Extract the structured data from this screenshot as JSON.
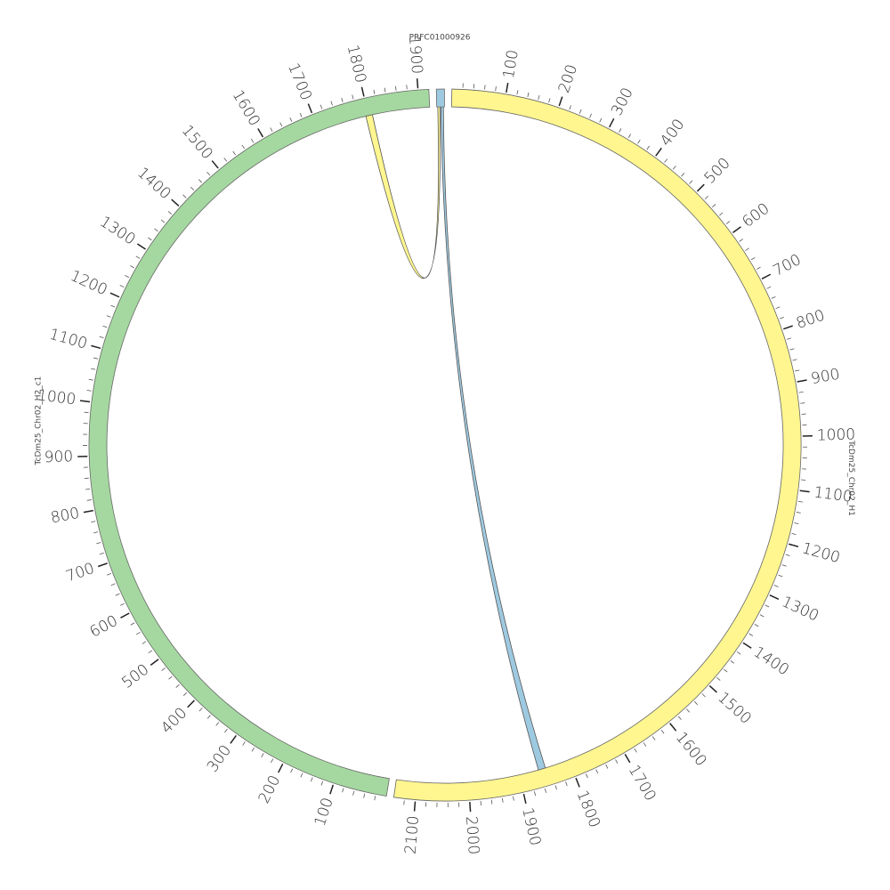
{
  "chart_data": {
    "type": "circos",
    "minor_tick_step": 20,
    "segments": [
      {
        "name": "PRFC01000926",
        "color": "#9ecae1",
        "length": 15,
        "ticks": []
      },
      {
        "name": "TcDm25_Chr02_H1",
        "color": "#fff68f",
        "length": 2140,
        "ticks": [
          100,
          200,
          300,
          400,
          500,
          600,
          700,
          800,
          900,
          1000,
          1100,
          1200,
          1300,
          1400,
          1500,
          1600,
          1700,
          1800,
          1900,
          2000,
          2100
        ]
      },
      {
        "name": "TcDm25_Chr02_H2_c1",
        "color": "#a5d8a0",
        "length": 1920,
        "ticks": [
          100,
          200,
          300,
          400,
          500,
          600,
          700,
          800,
          900,
          1000,
          1100,
          1200,
          1300,
          1400,
          1500,
          1600,
          1700,
          1800,
          1900
        ]
      }
    ],
    "links": [
      {
        "color": "#fff68f",
        "source": {
          "segment": 2,
          "start": 1795,
          "end": 1808
        },
        "target": {
          "segment": 0,
          "start": 2,
          "end": 6
        }
      },
      {
        "color": "#9ecae1",
        "source": {
          "segment": 0,
          "start": 8,
          "end": 13
        },
        "target": {
          "segment": 1,
          "start": 1848,
          "end": 1862
        }
      }
    ]
  }
}
